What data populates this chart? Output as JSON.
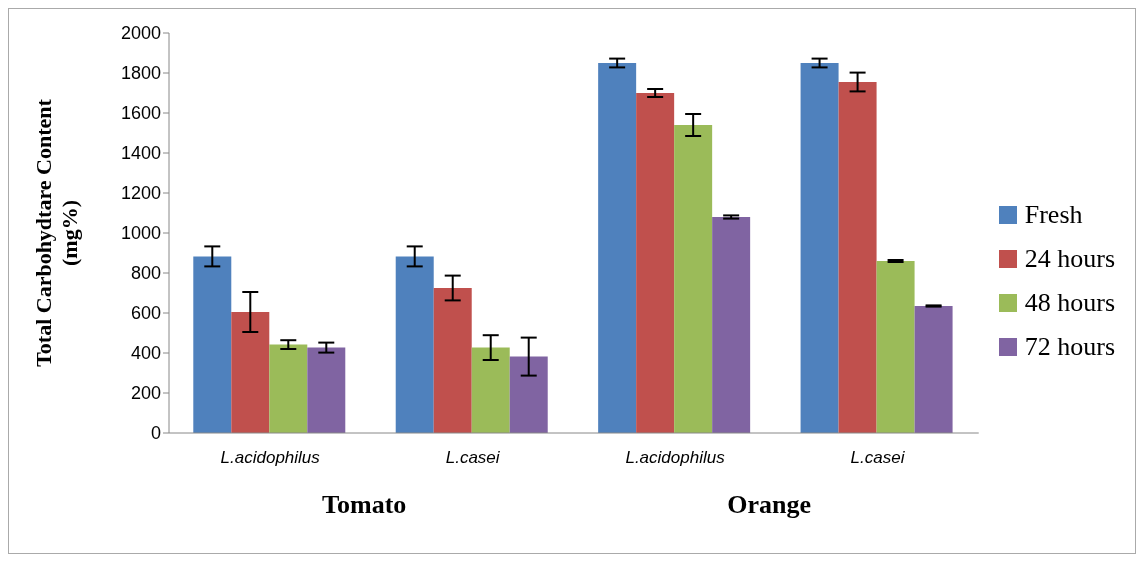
{
  "chart_data": {
    "type": "bar",
    "ylabel": "Total Carbohydtare Content (mg%)",
    "categories": [
      "L.acidophilus",
      "L.casei",
      "L.acidophilus",
      "L.casei"
    ],
    "annotations": [
      "Tomato",
      "Orange"
    ],
    "series": [
      {
        "name": "Fresh",
        "color": "#4f81bd",
        "values": [
          883,
          883,
          1850,
          1850
        ],
        "errors": [
          50,
          50,
          22,
          22
        ]
      },
      {
        "name": "24 hours",
        "color": "#c0504d",
        "values": [
          605,
          725,
          1700,
          1755
        ],
        "errors": [
          100,
          62,
          20,
          47
        ]
      },
      {
        "name": "48 hours",
        "color": "#9bbb59",
        "values": [
          442,
          427,
          1540,
          860
        ],
        "errors": [
          22,
          62,
          55,
          5
        ]
      },
      {
        "name": "72 hours",
        "color": "#8064a2",
        "values": [
          427,
          382,
          1080,
          635
        ],
        "errors": [
          25,
          95,
          8,
          3
        ]
      }
    ],
    "ylim": [
      0,
      2000
    ],
    "yticks": [
      0,
      200,
      400,
      600,
      800,
      1000,
      1200,
      1400,
      1600,
      1800,
      2000
    ],
    "grid": false,
    "legend": "right"
  }
}
